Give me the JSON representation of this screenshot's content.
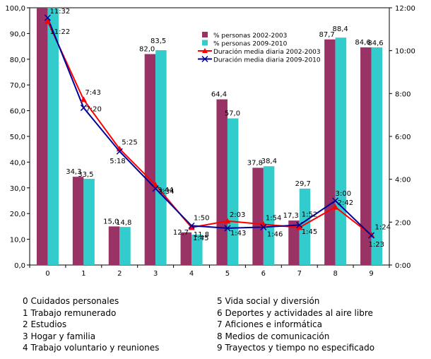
{
  "chart_data": {
    "type": "bar",
    "categories": [
      "0",
      "1",
      "2",
      "3",
      "4",
      "5",
      "6",
      "7",
      "8",
      "9"
    ],
    "series": [
      {
        "name": "% personas 2002-2003",
        "color": "#993366",
        "values": [
          100.0,
          34.3,
          15.0,
          82.0,
          12.7,
          64.4,
          37.8,
          17.3,
          87.7,
          84.6
        ],
        "labels": [
          "",
          "34,3",
          "15,0",
          "82,0",
          "12,7",
          "64,4",
          "37,8",
          "17,3",
          "87,7",
          "84,6"
        ]
      },
      {
        "name": "% personas 2009-2010",
        "color": "#33cccc",
        "values": [
          100.0,
          33.5,
          14.8,
          83.5,
          11.8,
          57.0,
          38.4,
          29.7,
          88.4,
          84.6
        ],
        "labels": [
          "",
          "33,5",
          "14,8",
          "83,5",
          "11,8",
          "57,0",
          "38,4",
          "29,7",
          "88,4",
          "84,6"
        ]
      }
    ],
    "line_series": [
      {
        "name": "Duración media diaria 2002-2003",
        "color": "#ff0000",
        "marker": "triangle",
        "values_min": [
          682,
          463,
          325,
          224,
          105,
          123,
          114,
          105,
          162,
          84
        ],
        "labels": [
          "11:22",
          "7:43",
          "5:25",
          "3:44",
          "1:45",
          "2:03",
          "1:54",
          "1:45",
          "2:42",
          "1:24"
        ]
      },
      {
        "name": "Duración media diaria 2009-2010",
        "color": "#000099",
        "marker": "x",
        "values_min": [
          692,
          440,
          318,
          214,
          110,
          103,
          106,
          112,
          180,
          83
        ],
        "labels": [
          "11:32",
          "7:20",
          "5:18",
          "3:34",
          "1:50",
          "1:43",
          "1:46",
          "1:52",
          "3:00",
          "1:23"
        ]
      }
    ],
    "y_left": {
      "min": 0,
      "max": 100,
      "step": 10,
      "ticks": [
        "0,0",
        "10,0",
        "20,0",
        "30,0",
        "40,0",
        "50,0",
        "60,0",
        "70,0",
        "80,0",
        "90,0",
        "100,0"
      ]
    },
    "y_right": {
      "min": 0,
      "max": 720,
      "step": 120,
      "ticks": [
        "0:00",
        "2:00",
        "4:00",
        "6:00",
        "8:00",
        "10:00",
        "12:00"
      ]
    },
    "legend_position": "top-right",
    "title": "",
    "xlabel": "",
    "ylabel": ""
  },
  "category_legend": {
    "left": [
      "0 Cuidados personales",
      "1 Trabajo remunerado",
      "2 Estudios",
      "3 Hogar y familia",
      "4 Trabajo voluntario y reuniones"
    ],
    "right": [
      "5 Vida social y diversión",
      "6 Deportes y actividades al aire libre",
      "7 Aficiones e informática",
      "8 Medios de comunicación",
      "9 Trayectos y tiempo no especificado"
    ]
  }
}
